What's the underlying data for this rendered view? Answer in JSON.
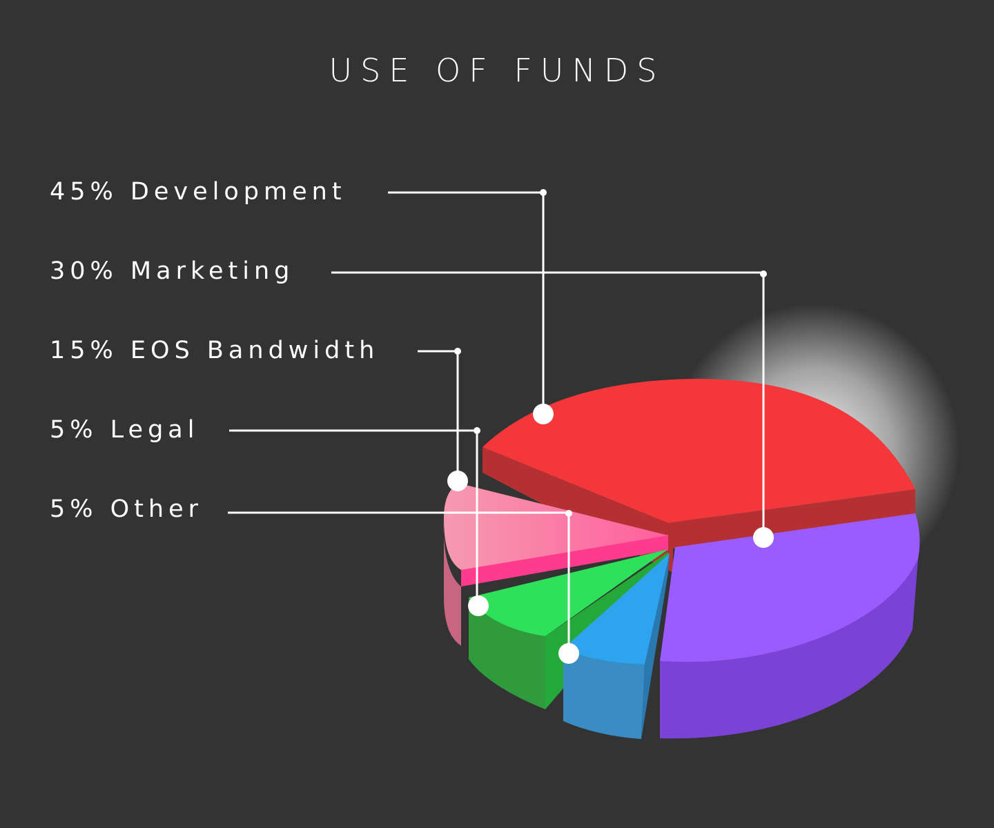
{
  "chart_data": {
    "type": "pie",
    "title": "USE OF FUNDS",
    "style": "3d-exploded",
    "slices": [
      {
        "label": "45% Development",
        "value": 45,
        "color_top": "#f4373a",
        "color_side": "#b53032"
      },
      {
        "label": "30% Marketing",
        "value": 30,
        "color_top": "#9b5cff",
        "color_side": "#7a43d6"
      },
      {
        "label": "15% EOS Bandwidth",
        "value": 15,
        "color_top": "#ff5f9c",
        "color_side": "#c86681"
      },
      {
        "label": "5% Legal",
        "value": 5,
        "color_top": "#2ee05a",
        "color_side": "#2f9b3d"
      },
      {
        "label": "5% Other",
        "value": 5,
        "color_top": "#2ea4ee",
        "color_side": "#3a8dc4"
      }
    ],
    "legend": "left",
    "background": "#333333"
  }
}
